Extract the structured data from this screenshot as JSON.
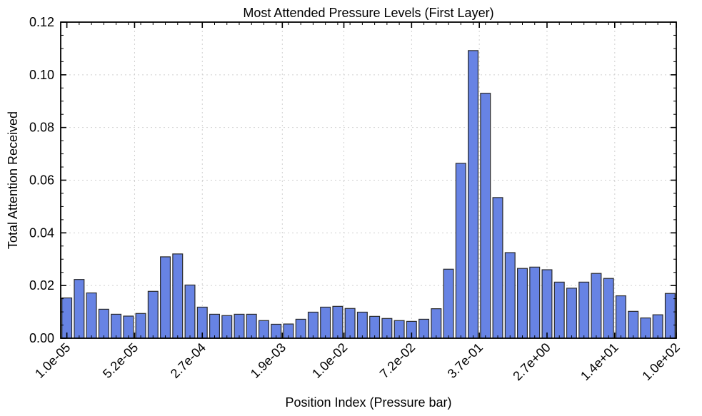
{
  "chart_data": {
    "type": "bar",
    "title": "Most Attended Pressure Levels (First Layer)",
    "xlabel": "Position Index (Pressure bar)",
    "ylabel": "Total Attention Received",
    "ylim": [
      0,
      0.12
    ],
    "yticks": [
      "0.00",
      "0.02",
      "0.04",
      "0.06",
      "0.08",
      "0.10",
      "0.12"
    ],
    "xtick_labels": [
      {
        "index": 0,
        "label": "1.0e-05"
      },
      {
        "index": 5.5,
        "label": "5.2e-05"
      },
      {
        "index": 11,
        "label": "2.7e-04"
      },
      {
        "index": 17.5,
        "label": "1.9e-03"
      },
      {
        "index": 22.5,
        "label": "1.0e-02"
      },
      {
        "index": 28,
        "label": "7.2e-02"
      },
      {
        "index": 33.5,
        "label": "3.7e-01"
      },
      {
        "index": 39,
        "label": "2.7e+00"
      },
      {
        "index": 44.5,
        "label": "1.4e+01"
      },
      {
        "index": 50,
        "label": "1.0e+02"
      }
    ],
    "values": [
      0.0153,
      0.0223,
      0.0172,
      0.011,
      0.0091,
      0.0084,
      0.0094,
      0.0178,
      0.0309,
      0.032,
      0.0202,
      0.0118,
      0.0091,
      0.0086,
      0.0091,
      0.0091,
      0.0067,
      0.0053,
      0.0054,
      0.0072,
      0.0099,
      0.0118,
      0.0121,
      0.0113,
      0.0099,
      0.0083,
      0.0075,
      0.0067,
      0.0064,
      0.0072,
      0.0112,
      0.0262,
      0.0664,
      0.1092,
      0.093,
      0.0534,
      0.0325,
      0.0265,
      0.027,
      0.026,
      0.0213,
      0.019,
      0.0213,
      0.0246,
      0.0227,
      0.0161,
      0.0102,
      0.0077,
      0.0089,
      0.017
    ],
    "bar_color": "#6783e4",
    "bar_edge_color": "#2a2a2a",
    "grid": true
  }
}
